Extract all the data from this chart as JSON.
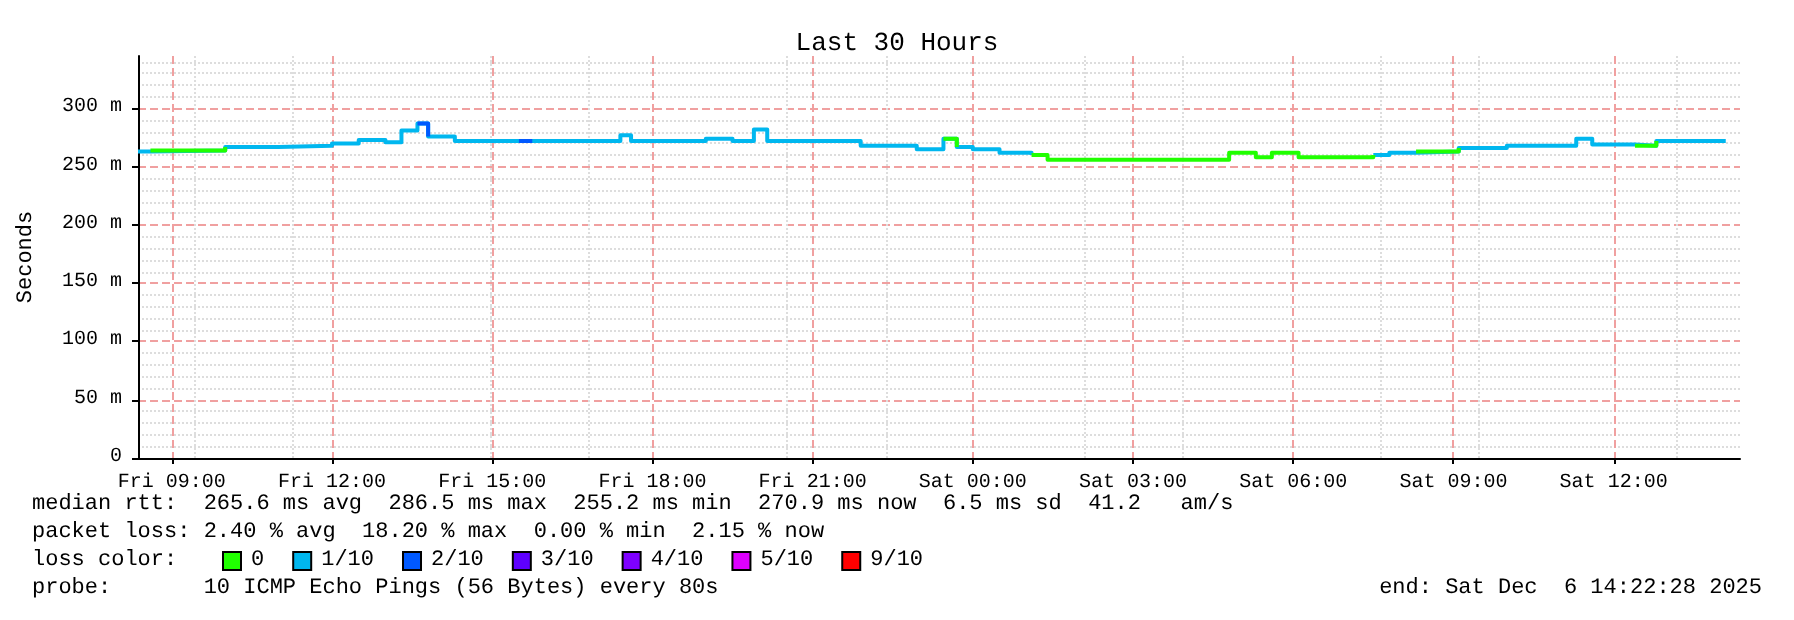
{
  "chart_data": {
    "type": "step",
    "title": "Last 30 Hours",
    "ylabel": "Seconds",
    "legend_title": "loss color:",
    "x": [
      "2025-12-05T08:22",
      "2025-12-05T08:36",
      "2025-12-05T10:00",
      "2025-12-05T11:00",
      "2025-12-05T12:00",
      "2025-12-05T12:30",
      "2025-12-05T13:00",
      "2025-12-05T13:18",
      "2025-12-05T13:36",
      "2025-12-05T13:48",
      "2025-12-05T14:18",
      "2025-12-05T15:30",
      "2025-12-05T15:45",
      "2025-12-05T17:24",
      "2025-12-05T17:36",
      "2025-12-05T19:00",
      "2025-12-05T19:30",
      "2025-12-05T19:54",
      "2025-12-05T20:09",
      "2025-12-05T21:54",
      "2025-12-05T22:57",
      "2025-12-05T23:27",
      "2025-12-05T23:42",
      "2025-12-06T00:00",
      "2025-12-06T00:30",
      "2025-12-06T01:06",
      "2025-12-06T01:24",
      "2025-12-06T04:48",
      "2025-12-06T05:18",
      "2025-12-06T05:36",
      "2025-12-06T06:06",
      "2025-12-06T07:30",
      "2025-12-06T07:48",
      "2025-12-06T08:18",
      "2025-12-06T09:06",
      "2025-12-06T10:00",
      "2025-12-06T11:18",
      "2025-12-06T11:36",
      "2025-12-06T12:24",
      "2025-12-06T12:48",
      "2025-12-06T14:06"
    ],
    "series": [
      {
        "name": "0",
        "color": "#20ff00",
        "values": [
          null,
          264,
          267,
          null,
          null,
          null,
          null,
          null,
          null,
          null,
          null,
          null,
          null,
          null,
          null,
          null,
          null,
          null,
          null,
          null,
          null,
          274,
          267,
          null,
          null,
          260,
          256,
          262,
          258,
          262,
          258,
          260,
          null,
          263,
          266,
          null,
          null,
          null,
          268,
          272,
          null
        ]
      },
      {
        "name": "1/10",
        "color": "#00b7ef",
        "values": [
          263,
          264,
          267,
          268,
          270,
          273,
          271,
          281,
          287,
          276,
          272,
          272,
          272,
          277,
          272,
          274,
          272,
          282,
          272,
          268,
          265,
          274,
          267,
          265,
          262,
          260,
          null,
          null,
          null,
          null,
          null,
          260,
          262,
          263,
          266,
          268,
          274,
          269,
          268,
          272,
          272
        ]
      },
      {
        "name": "2/10",
        "color": "#0059ff",
        "values": [
          null,
          null,
          null,
          null,
          null,
          null,
          null,
          null,
          287,
          276,
          null,
          272,
          272,
          null,
          null,
          null,
          null,
          null,
          null,
          null,
          null,
          null,
          null,
          null,
          null,
          null,
          null,
          null,
          null,
          null,
          null,
          null,
          null,
          null,
          null,
          null,
          null,
          null,
          null,
          null,
          null
        ]
      },
      {
        "name": "3/10",
        "color": "#5e00ff",
        "values": [
          null,
          null,
          null,
          null,
          null,
          null,
          null,
          null,
          null,
          null,
          null,
          null,
          null,
          null,
          null,
          null,
          null,
          null,
          null,
          null,
          null,
          null,
          null,
          null,
          null,
          null,
          null,
          null,
          null,
          null,
          null,
          null,
          null,
          null,
          null,
          null,
          null,
          null,
          null,
          null,
          null
        ]
      },
      {
        "name": "4/10",
        "color": "#7e00ff",
        "values": [
          null,
          null,
          null,
          null,
          null,
          null,
          null,
          null,
          null,
          null,
          null,
          null,
          null,
          null,
          null,
          null,
          null,
          null,
          null,
          null,
          null,
          null,
          null,
          null,
          null,
          null,
          null,
          null,
          null,
          null,
          null,
          null,
          null,
          null,
          null,
          null,
          null,
          null,
          null,
          null,
          null
        ]
      },
      {
        "name": "5/10",
        "color": "#dd00ff",
        "values": [
          null,
          null,
          null,
          null,
          null,
          null,
          null,
          null,
          null,
          null,
          null,
          null,
          null,
          null,
          null,
          null,
          null,
          null,
          null,
          null,
          null,
          null,
          null,
          null,
          null,
          null,
          null,
          null,
          null,
          null,
          null,
          null,
          null,
          null,
          null,
          null,
          null,
          null,
          null,
          null,
          null
        ]
      },
      {
        "name": "9/10",
        "color": "#ff0000",
        "values": [
          null,
          null,
          null,
          null,
          null,
          null,
          null,
          null,
          null,
          null,
          null,
          null,
          null,
          null,
          null,
          null,
          null,
          null,
          null,
          null,
          null,
          null,
          null,
          null,
          null,
          null,
          null,
          null,
          null,
          null,
          null,
          null,
          null,
          null,
          null,
          null,
          null,
          null,
          null,
          null,
          null
        ]
      }
    ],
    "xlim": [
      "2025-12-05T08:22",
      "2025-12-06T14:22"
    ],
    "xticks": [
      {
        "value": "2025-12-05T09:00",
        "label": "Fri 09:00"
      },
      {
        "value": "2025-12-05T12:00",
        "label": "Fri 12:00"
      },
      {
        "value": "2025-12-05T15:00",
        "label": "Fri 15:00"
      },
      {
        "value": "2025-12-05T18:00",
        "label": "Fri 18:00"
      },
      {
        "value": "2025-12-05T21:00",
        "label": "Fri 21:00"
      },
      {
        "value": "2025-12-06T00:00",
        "label": "Sat 00:00"
      },
      {
        "value": "2025-12-06T03:00",
        "label": "Sat 03:00"
      },
      {
        "value": "2025-12-06T06:00",
        "label": "Sat 06:00"
      },
      {
        "value": "2025-12-06T09:00",
        "label": "Sat 09:00"
      },
      {
        "value": "2025-12-06T12:00",
        "label": "Sat 12:00"
      }
    ],
    "ylim": [
      0,
      345
    ],
    "yticks": [
      0,
      {
        "value": 50,
        "label": "50 m"
      },
      {
        "value": 100,
        "label": "100 m"
      },
      {
        "value": 150,
        "label": "150 m"
      },
      {
        "value": 200,
        "label": "200 m"
      },
      {
        "value": 250,
        "label": "250 m"
      },
      {
        "value": 300,
        "label": "300 m"
      }
    ],
    "grid": true,
    "legend": "bottom left",
    "annotations": [
      "median rtt:  265.6 ms avg  286.5 ms max  255.2 ms min  270.9 ms now  6.5 ms sd  41.2   am/s",
      "packet loss: 2.40 % avg  18.20 % max  0.00 % min  2.15 % now",
      "probe:       10 ICMP Echo Pings (56 Bytes) every 80s",
      "end: Sat Dec  6 14:22:28 2025"
    ]
  }
}
